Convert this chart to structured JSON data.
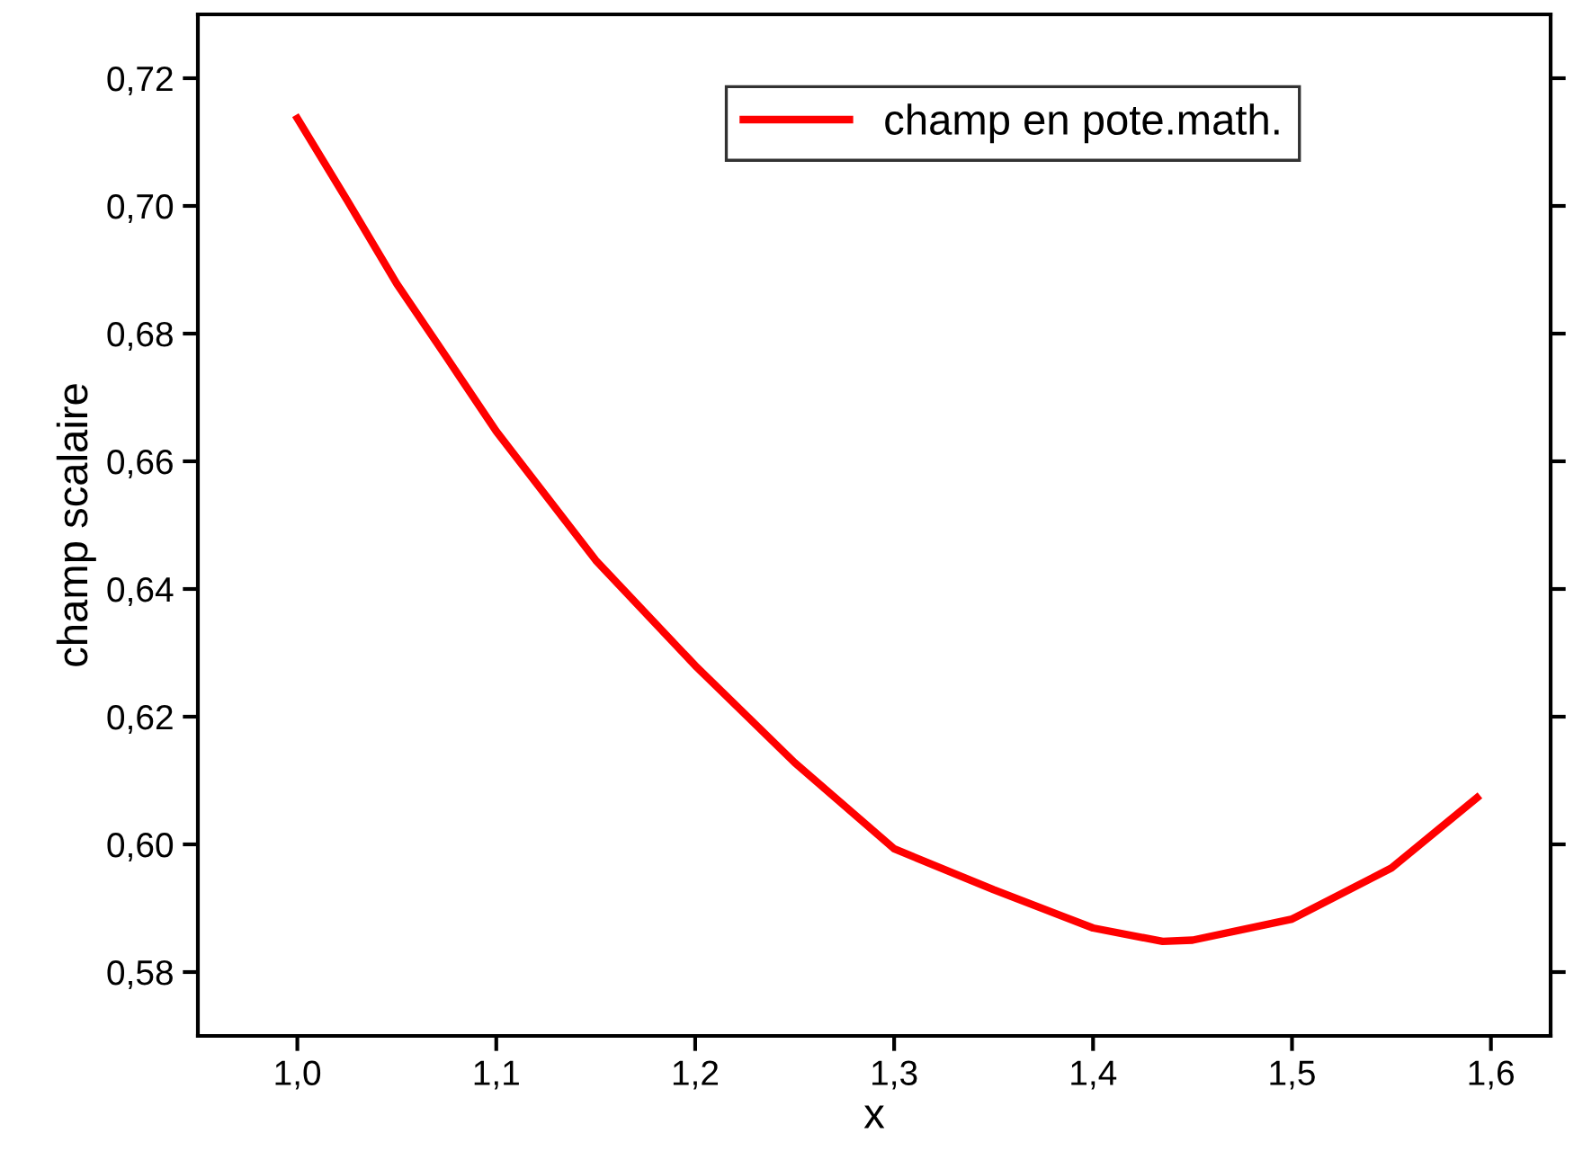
{
  "chart_data": {
    "type": "line",
    "xlabel": "x",
    "ylabel": "champ scalaire",
    "series": [
      {
        "name": "champ en pote.math.",
        "color": "#ff0000",
        "x": [
          1.0,
          1.025,
          1.05,
          1.075,
          1.1,
          1.15,
          1.2,
          1.25,
          1.3,
          1.35,
          1.4,
          1.435,
          1.45,
          1.5,
          1.55,
          1.593
        ],
        "values": [
          0.7137,
          0.7009,
          0.6878,
          0.6763,
          0.6647,
          0.6445,
          0.628,
          0.6128,
          0.5993,
          0.5929,
          0.5869,
          0.5848,
          0.585,
          0.5883,
          0.5963,
          0.6073
        ]
      }
    ],
    "xlim": [
      0.95,
      1.63
    ],
    "ylim": [
      0.57,
      0.73
    ],
    "xticks": [
      {
        "value": 1.0,
        "label": "1,0"
      },
      {
        "value": 1.1,
        "label": "1,1"
      },
      {
        "value": 1.2,
        "label": "1,2"
      },
      {
        "value": 1.3,
        "label": "1,3"
      },
      {
        "value": 1.4,
        "label": "1,4"
      },
      {
        "value": 1.5,
        "label": "1,5"
      },
      {
        "value": 1.6,
        "label": "1,6"
      }
    ],
    "yticks": [
      {
        "value": 0.58,
        "label": "0,58"
      },
      {
        "value": 0.6,
        "label": "0,60"
      },
      {
        "value": 0.62,
        "label": "0,62"
      },
      {
        "value": 0.64,
        "label": "0,64"
      },
      {
        "value": 0.66,
        "label": "0,66"
      },
      {
        "value": 0.68,
        "label": "0,68"
      },
      {
        "value": 0.7,
        "label": "0,70"
      },
      {
        "value": 0.72,
        "label": "0,72"
      }
    ],
    "grid": false,
    "legend": "top right",
    "line_style": "solid"
  }
}
